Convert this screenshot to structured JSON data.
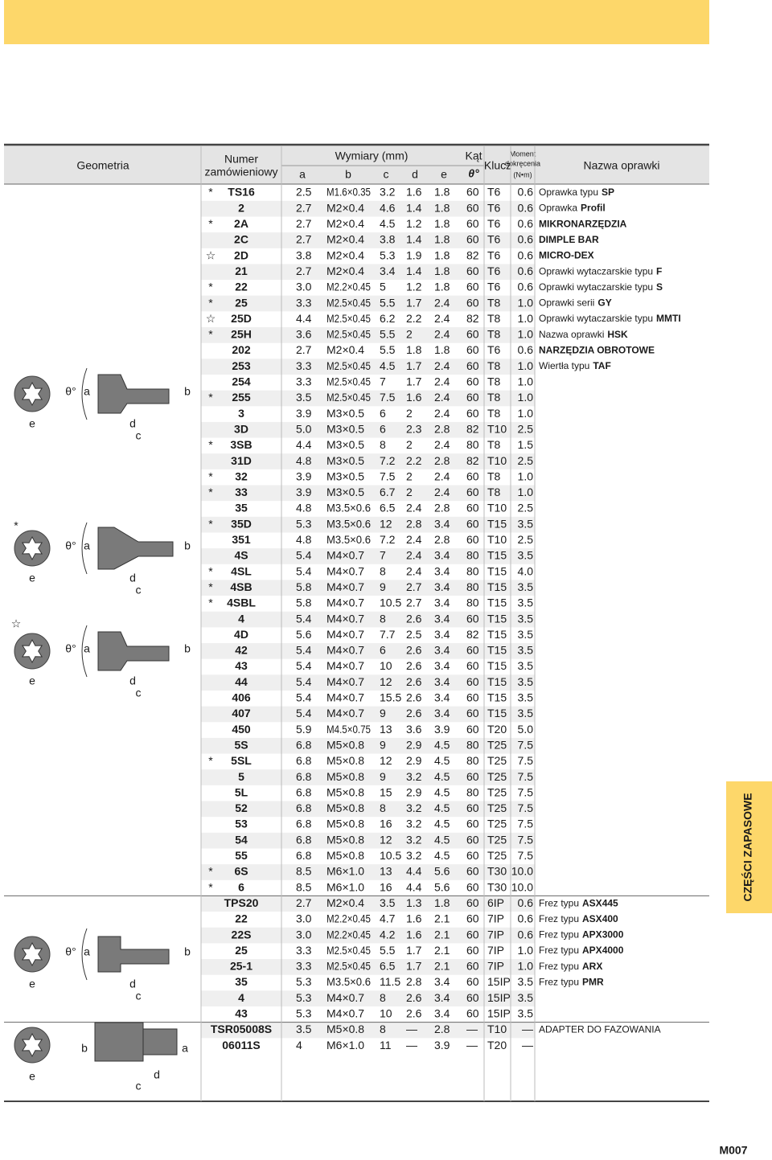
{
  "header": {
    "geometry": "Geometria",
    "order_no": [
      "Numer",
      "zamówieniowy"
    ],
    "dims": "Wymiary (mm)",
    "dim_cols": [
      "a",
      "b",
      "c",
      "d",
      "e"
    ],
    "angle": "Kąt",
    "angle_sym": "θ°",
    "key": "Klucz",
    "torque": [
      "Moment",
      "dokręcenia",
      "(N•m)"
    ],
    "name": "Nazwa oprawki"
  },
  "geometry": {
    "labels": [
      "e",
      "d",
      "c",
      "a",
      "b",
      "θ°"
    ],
    "markers": [
      "*",
      "☆"
    ]
  },
  "rows": [
    [
      "*",
      "TS16",
      "2.5",
      "M1.6×0.35",
      "3.2",
      "1.6",
      "1.8",
      "60",
      "T6",
      "0.6",
      "Oprawka typu",
      "SP"
    ],
    [
      null,
      "2",
      "2.7",
      "M2×0.4",
      "4.6",
      "1.4",
      "1.8",
      "60",
      "T6",
      "0.6",
      "Oprawka",
      "Profil"
    ],
    [
      "*",
      "2A",
      "2.7",
      "M2×0.4",
      "4.5",
      "1.2",
      "1.8",
      "60",
      "T6",
      "0.6",
      null,
      "MIKRONARZĘDZIA"
    ],
    [
      null,
      "2C",
      "2.7",
      "M2×0.4",
      "3.8",
      "1.4",
      "1.8",
      "60",
      "T6",
      "0.6",
      null,
      "DIMPLE BAR"
    ],
    [
      "☆",
      "2D",
      "3.8",
      "M2×0.4",
      "5.3",
      "1.9",
      "1.8",
      "82",
      "T6",
      "0.6",
      null,
      "MICRO-DEX"
    ],
    [
      null,
      "21",
      "2.7",
      "M2×0.4",
      "3.4",
      "1.4",
      "1.8",
      "60",
      "T6",
      "0.6",
      "Oprawki wytaczarskie typu",
      "F"
    ],
    [
      "*",
      "22",
      "3.0",
      "M2.2×0.45",
      "5",
      "1.2",
      "1.8",
      "60",
      "T6",
      "0.6",
      "Oprawki wytaczarskie typu",
      "S"
    ],
    [
      "*",
      "25",
      "3.3",
      "M2.5×0.45",
      "5.5",
      "1.7",
      "2.4",
      "60",
      "T8",
      "1.0",
      "Oprawki serii",
      "GY"
    ],
    [
      "☆",
      "25D",
      "4.4",
      "M2.5×0.45",
      "6.2",
      "2.2",
      "2.4",
      "82",
      "T8",
      "1.0",
      "Oprawki wytaczarskie typu",
      "MMTI"
    ],
    [
      "*",
      "25H",
      "3.6",
      "M2.5×0.45",
      "5.5",
      "2",
      "2.4",
      "60",
      "T8",
      "1.0",
      "Nazwa oprawki",
      "HSK"
    ],
    [
      null,
      "202",
      "2.7",
      "M2×0.4",
      "5.5",
      "1.8",
      "1.8",
      "60",
      "T6",
      "0.6",
      null,
      "NARZĘDZIA OBROTOWE"
    ],
    [
      null,
      "253",
      "3.3",
      "M2.5×0.45",
      "4.5",
      "1.7",
      "2.4",
      "60",
      "T8",
      "1.0",
      "Wiertła typu",
      "TAF"
    ],
    [
      null,
      "254",
      "3.3",
      "M2.5×0.45",
      "7",
      "1.7",
      "2.4",
      "60",
      "T8",
      "1.0",
      null,
      null
    ],
    [
      "*",
      "255",
      "3.5",
      "M2.5×0.45",
      "7.5",
      "1.6",
      "2.4",
      "60",
      "T8",
      "1.0",
      null,
      null
    ],
    [
      null,
      "3",
      "3.9",
      "M3×0.5",
      "6",
      "2",
      "2.4",
      "60",
      "T8",
      "1.0",
      null,
      null
    ],
    [
      null,
      "3D",
      "5.0",
      "M3×0.5",
      "6",
      "2.3",
      "2.8",
      "82",
      "T10",
      "2.5",
      null,
      null
    ],
    [
      "*",
      "3SB",
      "4.4",
      "M3×0.5",
      "8",
      "2",
      "2.4",
      "80",
      "T8",
      "1.5",
      null,
      null
    ],
    [
      null,
      "31D",
      "4.8",
      "M3×0.5",
      "7.2",
      "2.2",
      "2.8",
      "82",
      "T10",
      "2.5",
      null,
      null
    ],
    [
      "*",
      "32",
      "3.9",
      "M3×0.5",
      "7.5",
      "2",
      "2.4",
      "60",
      "T8",
      "1.0",
      null,
      null
    ],
    [
      "*",
      "33",
      "3.9",
      "M3×0.5",
      "6.7",
      "2",
      "2.4",
      "60",
      "T8",
      "1.0",
      null,
      null
    ],
    [
      null,
      "35",
      "4.8",
      "M3.5×0.6",
      "6.5",
      "2.4",
      "2.8",
      "60",
      "T10",
      "2.5",
      null,
      null
    ],
    [
      "*",
      "35D",
      "5.3",
      "M3.5×0.6",
      "12",
      "2.8",
      "3.4",
      "60",
      "T15",
      "3.5",
      null,
      null
    ],
    [
      null,
      "351",
      "4.8",
      "M3.5×0.6",
      "7.2",
      "2.4",
      "2.8",
      "60",
      "T10",
      "2.5",
      null,
      null
    ],
    [
      null,
      "4S",
      "5.4",
      "M4×0.7",
      "7",
      "2.4",
      "3.4",
      "80",
      "T15",
      "3.5",
      null,
      null
    ],
    [
      "*",
      "4SL",
      "5.4",
      "M4×0.7",
      "8",
      "2.4",
      "3.4",
      "80",
      "T15",
      "4.0",
      null,
      null
    ],
    [
      "*",
      "4SB",
      "5.8",
      "M4×0.7",
      "9",
      "2.7",
      "3.4",
      "80",
      "T15",
      "3.5",
      null,
      null
    ],
    [
      "*",
      "4SBL",
      "5.8",
      "M4×0.7",
      "10.5",
      "2.7",
      "3.4",
      "80",
      "T15",
      "3.5",
      null,
      null
    ],
    [
      null,
      "4",
      "5.4",
      "M4×0.7",
      "8",
      "2.6",
      "3.4",
      "60",
      "T15",
      "3.5",
      null,
      null
    ],
    [
      null,
      "4D",
      "5.6",
      "M4×0.7",
      "7.7",
      "2.5",
      "3.4",
      "82",
      "T15",
      "3.5",
      null,
      null
    ],
    [
      null,
      "42",
      "5.4",
      "M4×0.7",
      "6",
      "2.6",
      "3.4",
      "60",
      "T15",
      "3.5",
      null,
      null
    ],
    [
      null,
      "43",
      "5.4",
      "M4×0.7",
      "10",
      "2.6",
      "3.4",
      "60",
      "T15",
      "3.5",
      null,
      null
    ],
    [
      null,
      "44",
      "5.4",
      "M4×0.7",
      "12",
      "2.6",
      "3.4",
      "60",
      "T15",
      "3.5",
      null,
      null
    ],
    [
      null,
      "406",
      "5.4",
      "M4×0.7",
      "15.5",
      "2.6",
      "3.4",
      "60",
      "T15",
      "3.5",
      null,
      null
    ],
    [
      null,
      "407",
      "5.4",
      "M4×0.7",
      "9",
      "2.6",
      "3.4",
      "60",
      "T15",
      "3.5",
      null,
      null
    ],
    [
      null,
      "450",
      "5.9",
      "M4.5×0.75",
      "13",
      "3.6",
      "3.9",
      "60",
      "T20",
      "5.0",
      null,
      null
    ],
    [
      null,
      "5S",
      "6.8",
      "M5×0.8",
      "9",
      "2.9",
      "4.5",
      "80",
      "T25",
      "7.5",
      null,
      null
    ],
    [
      "*",
      "5SL",
      "6.8",
      "M5×0.8",
      "12",
      "2.9",
      "4.5",
      "80",
      "T25",
      "7.5",
      null,
      null
    ],
    [
      null,
      "5",
      "6.8",
      "M5×0.8",
      "9",
      "3.2",
      "4.5",
      "60",
      "T25",
      "7.5",
      null,
      null
    ],
    [
      null,
      "5L",
      "6.8",
      "M5×0.8",
      "15",
      "2.9",
      "4.5",
      "80",
      "T25",
      "7.5",
      null,
      null
    ],
    [
      null,
      "52",
      "6.8",
      "M5×0.8",
      "8",
      "3.2",
      "4.5",
      "60",
      "T25",
      "7.5",
      null,
      null
    ],
    [
      null,
      "53",
      "6.8",
      "M5×0.8",
      "16",
      "3.2",
      "4.5",
      "60",
      "T25",
      "7.5",
      null,
      null
    ],
    [
      null,
      "54",
      "6.8",
      "M5×0.8",
      "12",
      "3.2",
      "4.5",
      "60",
      "T25",
      "7.5",
      null,
      null
    ],
    [
      null,
      "55",
      "6.8",
      "M5×0.8",
      "10.5",
      "3.2",
      "4.5",
      "60",
      "T25",
      "7.5",
      null,
      null
    ],
    [
      "*",
      "6S",
      "8.5",
      "M6×1.0",
      "13",
      "4.4",
      "5.6",
      "60",
      "T30",
      "10.0",
      null,
      null
    ],
    [
      "*",
      "6",
      "8.5",
      "M6×1.0",
      "16",
      "4.4",
      "5.6",
      "60",
      "T30",
      "10.0",
      null,
      null
    ],
    [
      null,
      "TPS20",
      "2.7",
      "M2×0.4",
      "3.5",
      "1.3",
      "1.8",
      "60",
      "6IP",
      "0.6",
      "Frez typu",
      "ASX445"
    ],
    [
      null,
      "22",
      "3.0",
      "M2.2×0.45",
      "4.7",
      "1.6",
      "2.1",
      "60",
      "7IP",
      "0.6",
      "Frez typu",
      "ASX400"
    ],
    [
      null,
      "22S",
      "3.0",
      "M2.2×0.45",
      "4.2",
      "1.6",
      "2.1",
      "60",
      "7IP",
      "0.6",
      "Frez typu",
      "APX3000"
    ],
    [
      null,
      "25",
      "3.3",
      "M2.5×0.45",
      "5.5",
      "1.7",
      "2.1",
      "60",
      "7IP",
      "1.0",
      "Frez typu",
      "APX4000"
    ],
    [
      null,
      "25-1",
      "3.3",
      "M2.5×0.45",
      "6.5",
      "1.7",
      "2.1",
      "60",
      "7IP",
      "1.0",
      "Frez typu",
      "ARX"
    ],
    [
      null,
      "35",
      "5.3",
      "M3.5×0.6",
      "11.5",
      "2.8",
      "3.4",
      "60",
      "15IP",
      "3.5",
      "Frez typu",
      "PMR"
    ],
    [
      null,
      "4",
      "5.3",
      "M4×0.7",
      "8",
      "2.6",
      "3.4",
      "60",
      "15IP",
      "3.5",
      null,
      null
    ],
    [
      null,
      "43",
      "5.3",
      "M4×0.7",
      "10",
      "2.6",
      "3.4",
      "60",
      "15IP",
      "3.5",
      null,
      null
    ],
    [
      null,
      "TSR05008S",
      "3.5",
      "M5×0.8",
      "8",
      "—",
      "2.8",
      "—",
      "T10",
      "—",
      "ADAPTER DO FAZOWANIA",
      null
    ],
    [
      null,
      "06011S",
      "4",
      "M6×1.0",
      "11",
      "—",
      "3.9",
      "—",
      "T20",
      "—",
      null,
      null
    ]
  ],
  "side_tab": "CZĘŚCI ZAPASOWE",
  "page_no": "M007"
}
